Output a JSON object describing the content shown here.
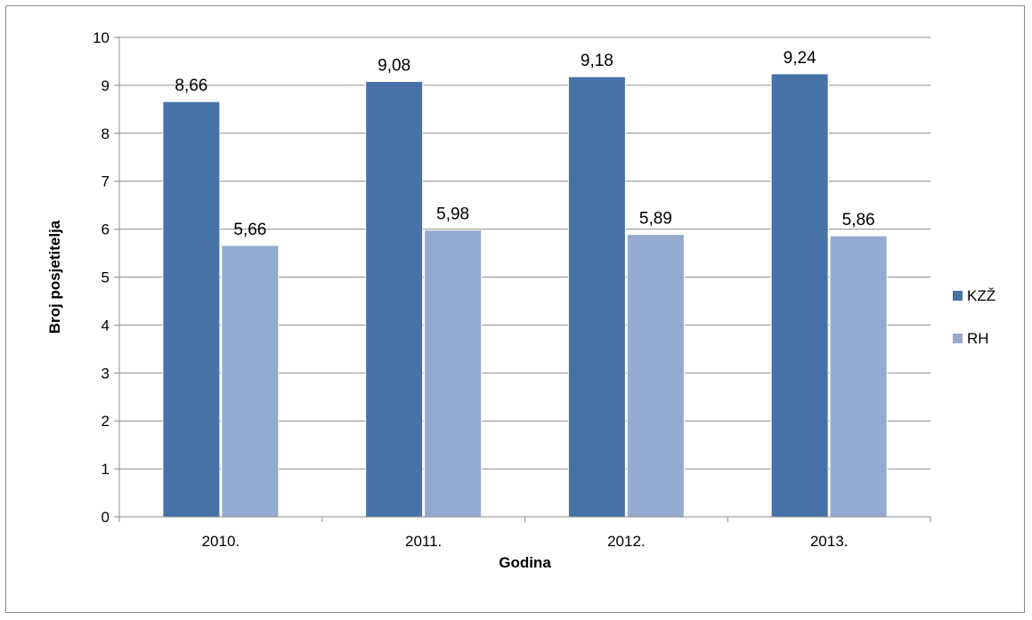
{
  "chart_data": {
    "type": "bar",
    "categories": [
      "2010.",
      "2011.",
      "2012.",
      "2013."
    ],
    "series": [
      {
        "name": "KZŽ",
        "values": [
          8.66,
          9.08,
          9.18,
          9.24
        ],
        "labels": [
          "8,66",
          "9,08",
          "9,18",
          "9,24"
        ],
        "color": "#4672A8"
      },
      {
        "name": "RH",
        "values": [
          5.66,
          5.98,
          5.89,
          5.86
        ],
        "labels": [
          "5,66",
          "5,98",
          "5,89",
          "5,86"
        ],
        "color": "#95AAD1"
      }
    ],
    "title": "",
    "xlabel": "Godina",
    "ylabel": "Broj posjetitelja",
    "ylim": [
      0,
      10
    ],
    "yticks": [
      "0",
      "1",
      "2",
      "3",
      "4",
      "5",
      "6",
      "7",
      "8",
      "9",
      "10"
    ],
    "grid": true,
    "legend_position": "right"
  }
}
